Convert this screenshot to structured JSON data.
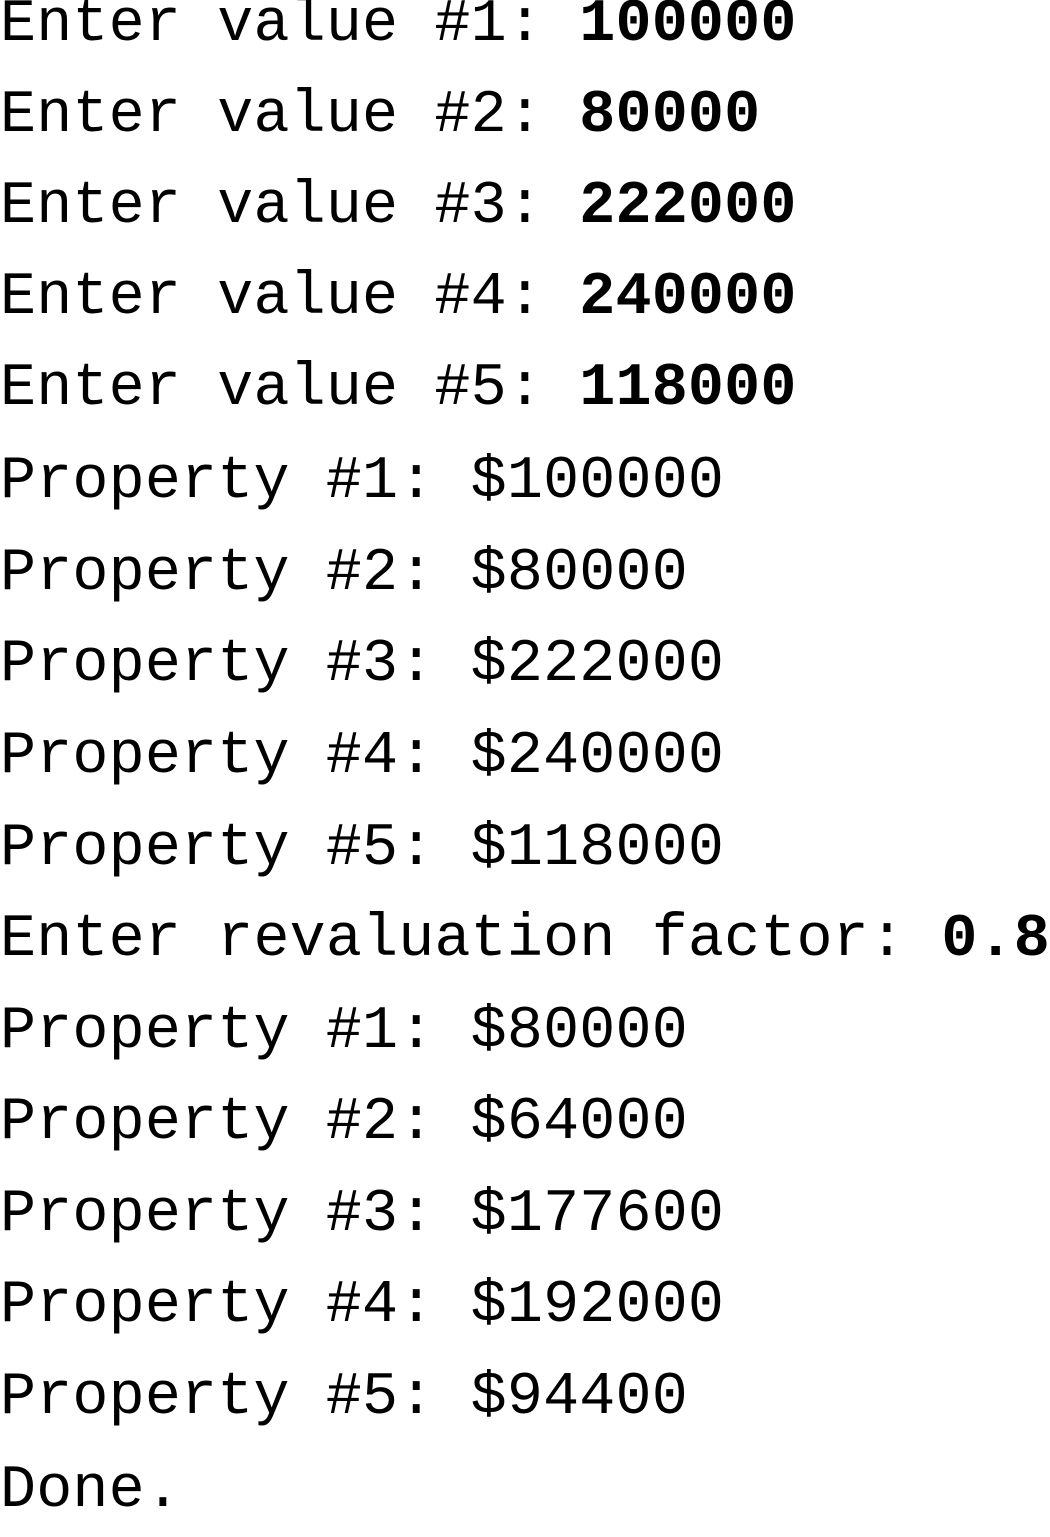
{
  "console": {
    "lines": [
      {
        "prompt": "Enter value #1: ",
        "input": "100000"
      },
      {
        "prompt": "Enter value #2: ",
        "input": "80000"
      },
      {
        "prompt": "Enter value #3: ",
        "input": "222000"
      },
      {
        "prompt": "Enter value #4: ",
        "input": "240000"
      },
      {
        "prompt": "Enter value #5: ",
        "input": "118000"
      },
      {
        "text": "Property #1: $100000"
      },
      {
        "text": "Property #2: $80000"
      },
      {
        "text": "Property #3: $222000"
      },
      {
        "text": "Property #4: $240000"
      },
      {
        "text": "Property #5: $118000"
      },
      {
        "prompt": "Enter revaluation factor: ",
        "input": "0.8"
      },
      {
        "text": "Property #1: $80000"
      },
      {
        "text": "Property #2: $64000"
      },
      {
        "text": "Property #3: $177600"
      },
      {
        "text": "Property #4: $192000"
      },
      {
        "text": "Property #5: $94400"
      },
      {
        "text": "Done."
      }
    ]
  }
}
